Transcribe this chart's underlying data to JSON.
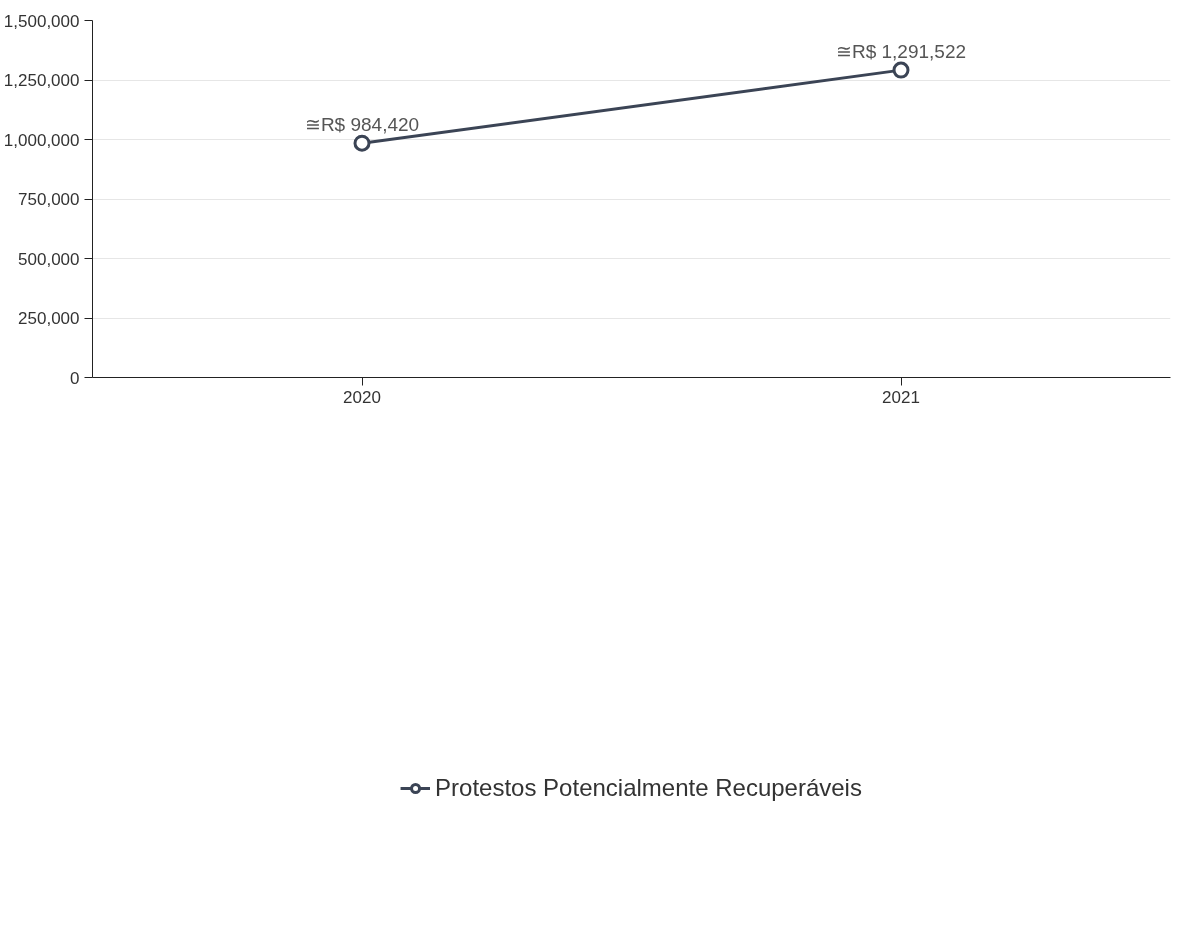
{
  "chart_data": {
    "type": "line",
    "categories": [
      "2020",
      "2021"
    ],
    "series": [
      {
        "name": "Protestos Potencialmente Recuperáveis",
        "color": "#3b4455",
        "values": [
          984420,
          1291522
        ],
        "value_labels": [
          "≅R$ 984,420",
          "≅R$ 1,291,522"
        ]
      }
    ],
    "ylim": [
      0,
      1500000
    ],
    "yticks": [
      {
        "value": 0,
        "label": "0"
      },
      {
        "value": 250000,
        "label": "250,000"
      },
      {
        "value": 500000,
        "label": "500,000"
      },
      {
        "value": 750000,
        "label": "750,000"
      },
      {
        "value": 1000000,
        "label": "1,000,000"
      },
      {
        "value": 1250000,
        "label": "1,250,000"
      },
      {
        "value": 1500000,
        "label": "1,500,000"
      }
    ],
    "grid": "y",
    "legend": "bottom",
    "marker": "circle",
    "line_style": "solid"
  }
}
